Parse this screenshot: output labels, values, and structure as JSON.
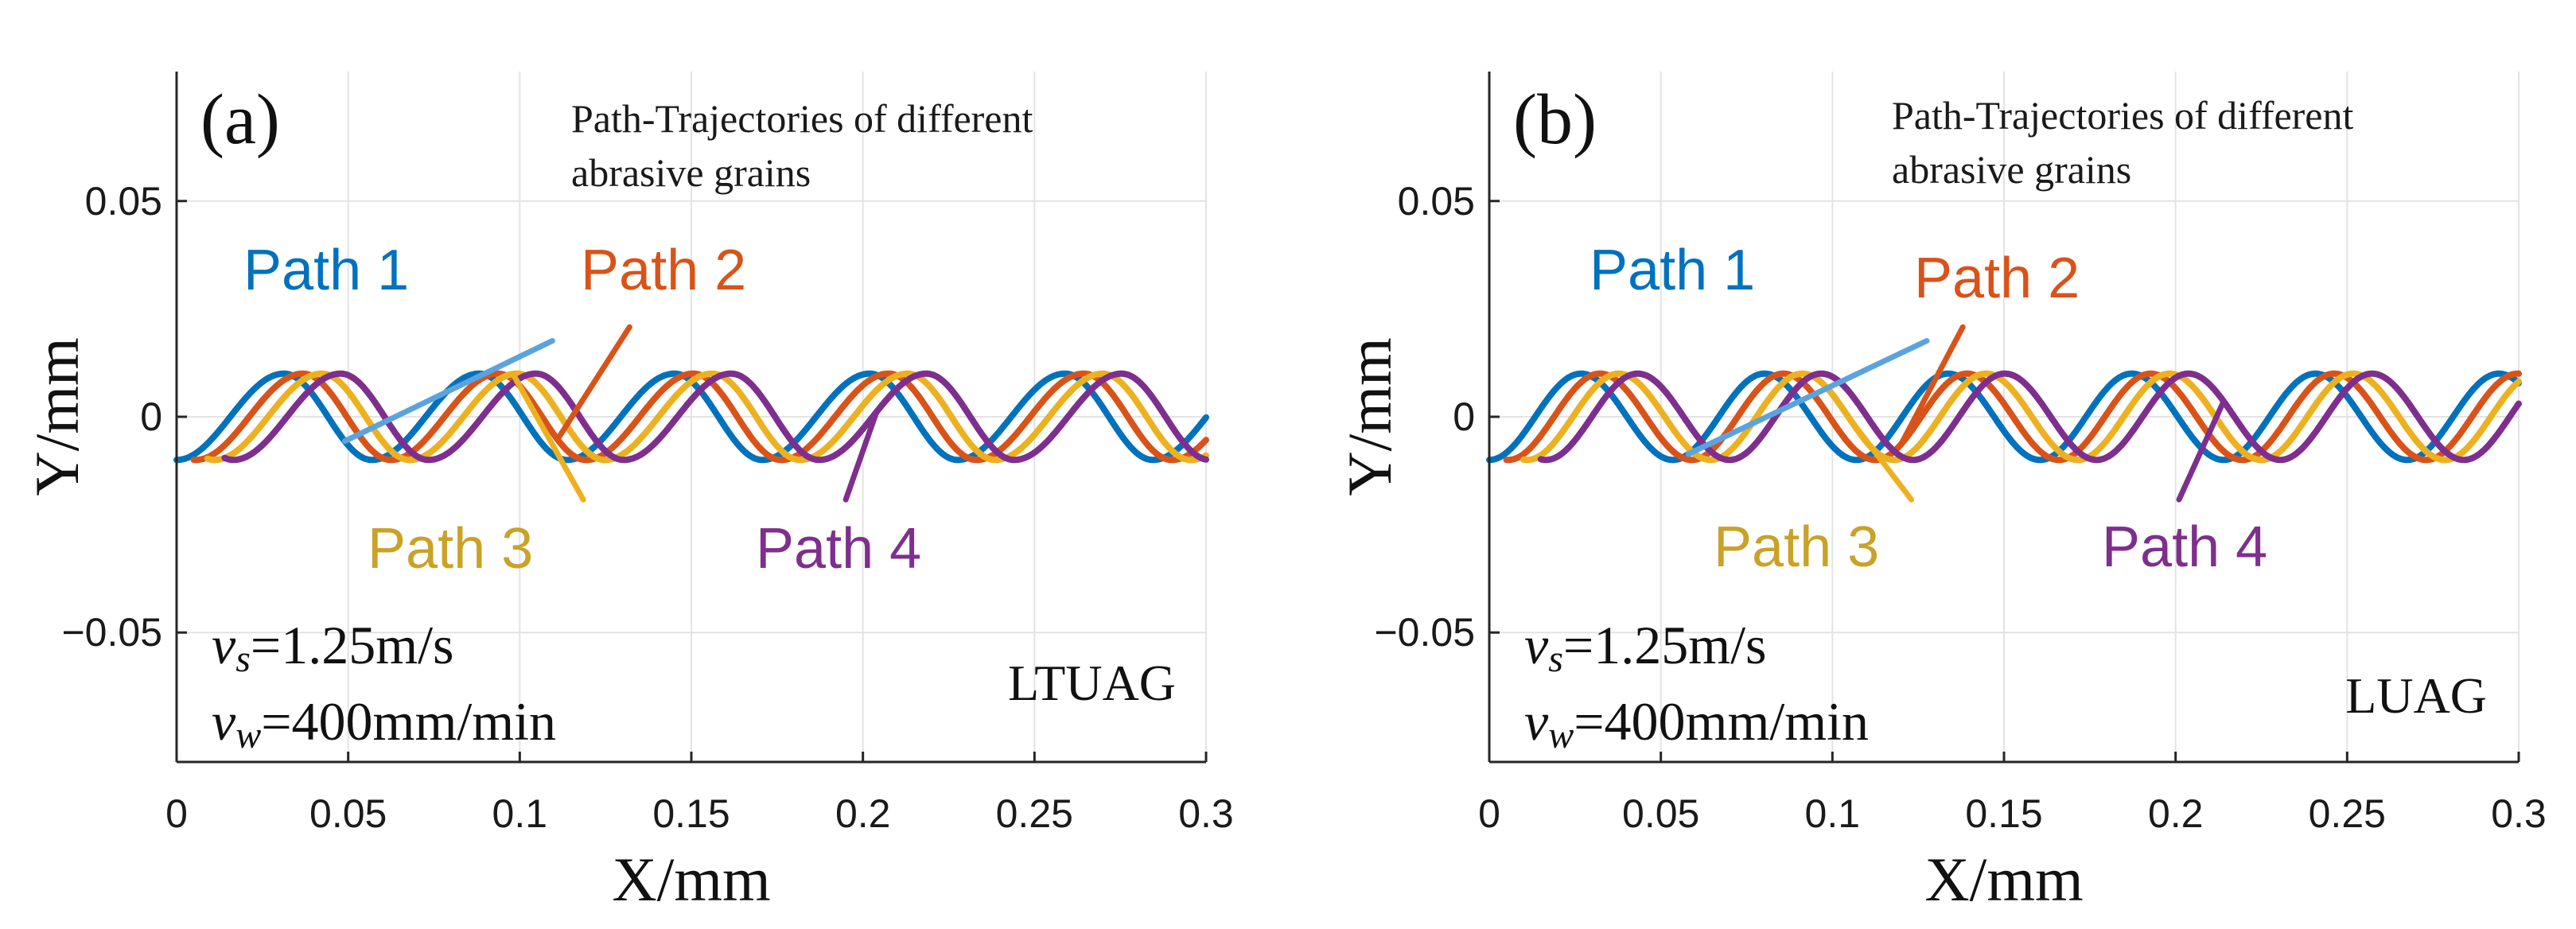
{
  "chart_data": [
    {
      "type": "line",
      "panel_label": "(a)",
      "xlabel": "X/mm",
      "ylabel": "Y/mm",
      "xlim": [
        0,
        0.3
      ],
      "ylim": [
        -0.08,
        0.08
      ],
      "xticks": [
        0,
        0.05,
        0.1,
        0.15,
        0.2,
        0.25,
        0.3
      ],
      "xtick_labels": [
        "0",
        "0.05",
        "0.1",
        "0.15",
        "0.2",
        "0.25",
        "0.3"
      ],
      "yticks": [
        -0.05,
        0,
        0.05
      ],
      "ytick_labels": [
        "−0.05",
        "0",
        "0.05"
      ],
      "grid": true,
      "annotation_lines": [
        "Path-Trajectories of different",
        "abrasive grains"
      ],
      "params": [
        {
          "var": "v",
          "sub": "s",
          "value": "=1.25m/s"
        },
        {
          "var": "v",
          "sub": "w",
          "value": "=400mm/min"
        }
      ],
      "sample_label": "LTUAG",
      "wave": {
        "amplitude": 0.01,
        "period": 0.0569,
        "skew": 0.55
      },
      "series": [
        {
          "name": "Path 1",
          "label": "Path 1",
          "color": "#0072BD",
          "x_shift": 0.0,
          "x_start": 0.0,
          "callout_at": 0.049
        },
        {
          "name": "Path 2",
          "label": "Path 2",
          "color": "#D95319",
          "x_shift": 0.0055,
          "x_start": 0.005,
          "callout_at": 0.111
        },
        {
          "name": "Path 3",
          "label": "Path 3",
          "color": "#EDB120",
          "x_shift": 0.011,
          "x_start": 0.009,
          "callout_at": 0.098
        },
        {
          "name": "Path 4",
          "label": "Path 4",
          "color": "#7E2F8E",
          "x_shift": 0.0165,
          "x_start": 0.014,
          "callout_at": 0.204
        }
      ]
    },
    {
      "type": "line",
      "panel_label": "(b)",
      "xlabel": "X/mm",
      "ylabel": "Y/mm",
      "xlim": [
        0,
        0.3
      ],
      "ylim": [
        -0.08,
        0.08
      ],
      "xticks": [
        0,
        0.05,
        0.1,
        0.15,
        0.2,
        0.25,
        0.3
      ],
      "xtick_labels": [
        "0",
        "0.05",
        "0.1",
        "0.15",
        "0.2",
        "0.25",
        "0.3"
      ],
      "yticks": [
        -0.05,
        0,
        0.05
      ],
      "ytick_labels": [
        "−0.05",
        "0",
        "0.05"
      ],
      "grid": true,
      "annotation_lines": [
        "Path-Trajectories of different",
        "abrasive grains"
      ],
      "params": [
        {
          "var": "v",
          "sub": "s",
          "value": "=1.25m/s"
        },
        {
          "var": "v",
          "sub": "w",
          "value": "=400mm/min"
        }
      ],
      "sample_label": "LUAG",
      "wave": {
        "amplitude": 0.01,
        "period": 0.0535,
        "skew": 0.5
      },
      "series": [
        {
          "name": "Path 1",
          "label": "Path 1",
          "color": "#0072BD",
          "x_shift": 0.0,
          "x_start": 0.0,
          "callout_at": 0.058
        },
        {
          "name": "Path 2",
          "label": "Path 2",
          "color": "#D95319",
          "x_shift": 0.0055,
          "x_start": 0.005,
          "callout_at": 0.12
        },
        {
          "name": "Path 3",
          "label": "Path 3",
          "color": "#EDB120",
          "x_shift": 0.011,
          "x_start": 0.01,
          "callout_at": 0.105
        },
        {
          "name": "Path 4",
          "label": "Path 4",
          "color": "#7E2F8E",
          "x_shift": 0.0165,
          "x_start": 0.015,
          "callout_at": 0.214
        }
      ]
    }
  ]
}
